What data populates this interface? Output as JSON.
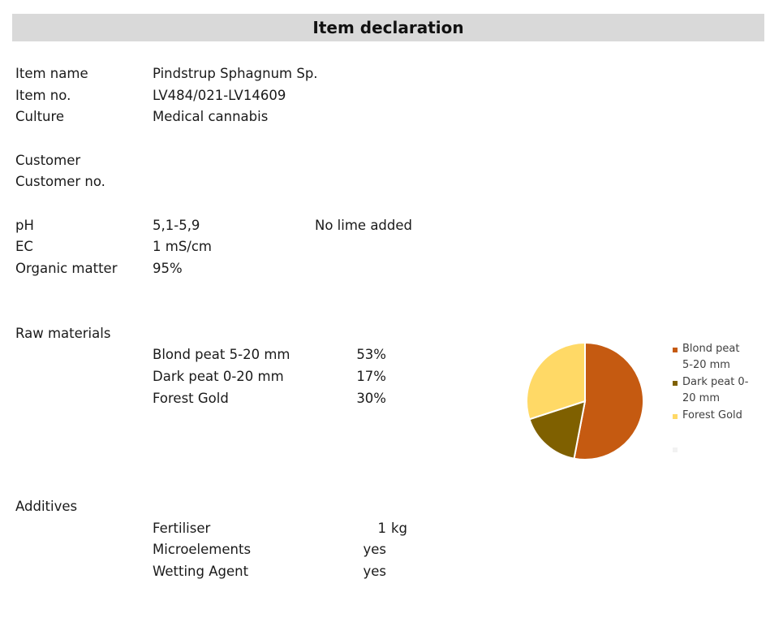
{
  "title": "Item declaration",
  "item": {
    "name_label": "Item name",
    "name_value": "Pindstrup Sphagnum Sp.",
    "no_label": "Item no.",
    "no_value": "LV484/021-LV14609",
    "culture_label": "Culture",
    "culture_value": "Medical cannabis"
  },
  "customer": {
    "label": "Customer",
    "no_label": "Customer no."
  },
  "properties": {
    "ph_label": "pH",
    "ph_value": "5,1-5,9",
    "ph_note": "No lime added",
    "ec_label": "EC",
    "ec_value": "1 mS/cm",
    "om_label": "Organic matter",
    "om_value": "95%"
  },
  "raw_materials": {
    "label": "Raw materials",
    "rows": [
      {
        "name": "Blond peat 5-20 mm",
        "pct": "53%"
      },
      {
        "name": "Dark peat 0-20 mm",
        "pct": "17%"
      },
      {
        "name": "Forest Gold",
        "pct": "30%"
      }
    ]
  },
  "additives": {
    "label": "Additives",
    "rows": [
      {
        "name": "Fertiliser",
        "qty": "1",
        "unit": "kg"
      },
      {
        "name": "Microelements",
        "qty": "yes"
      },
      {
        "name": "Wetting Agent",
        "qty": "yes"
      }
    ]
  },
  "chart_data": {
    "type": "pie",
    "categories": [
      "Blond peat 5-20 mm",
      "Dark peat 0-20 mm",
      "Forest Gold"
    ],
    "legend_lines": [
      [
        "Blond peat",
        "5-20 mm"
      ],
      [
        "Dark peat 0-",
        "20 mm"
      ],
      [
        "Forest Gold"
      ]
    ],
    "values": [
      53,
      17,
      30
    ],
    "colors": [
      "#c55a11",
      "#7f6000",
      "#ffd966"
    ],
    "legend_position": "right"
  }
}
